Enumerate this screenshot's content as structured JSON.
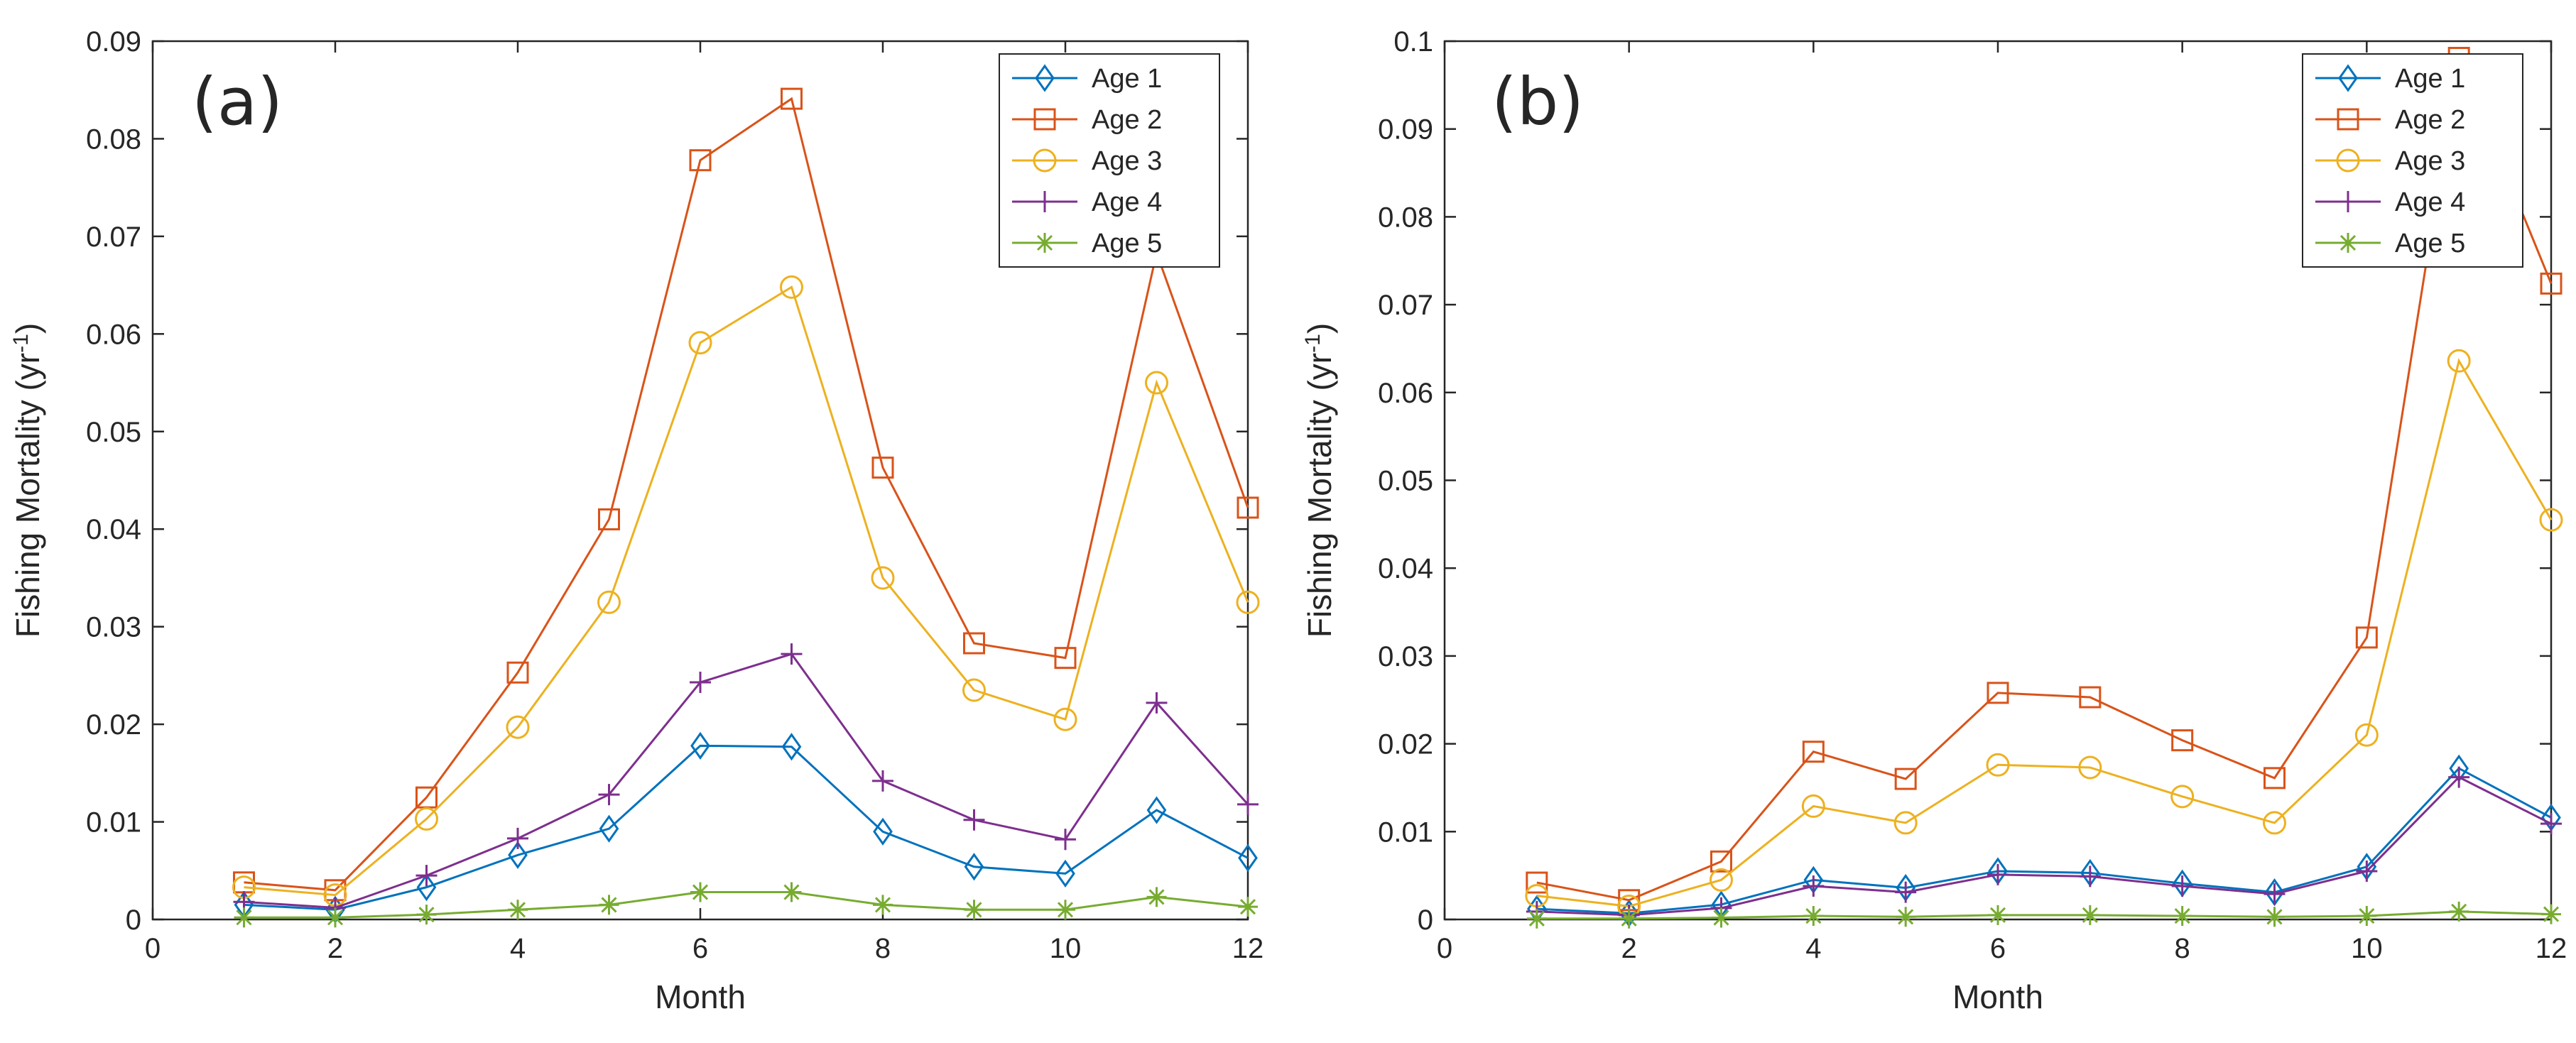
{
  "chart_data": [
    {
      "type": "line",
      "panel_label": "(a)",
      "xlabel": "Month",
      "ylabel": "Fishing Mortality (yr",
      "ylabel_sup": "-1",
      "ylabel_close": ")",
      "xlim": [
        0,
        12
      ],
      "ylim": [
        0,
        0.09
      ],
      "xticks": [
        0,
        2,
        4,
        6,
        8,
        10,
        12
      ],
      "xtick_labels": [
        "0",
        "2",
        "4",
        "6",
        "8",
        "10",
        "12"
      ],
      "yticks": [
        0,
        0.01,
        0.02,
        0.03,
        0.04,
        0.05,
        0.06,
        0.07,
        0.08,
        0.09
      ],
      "ytick_labels": [
        "0",
        "0.01",
        "0.02",
        "0.03",
        "0.04",
        "0.05",
        "0.06",
        "0.07",
        "0.08",
        "0.09"
      ],
      "grid": false,
      "legend_position": "top-right",
      "x": [
        1,
        2,
        3,
        4,
        5,
        6,
        7,
        8,
        9,
        10,
        11,
        12
      ],
      "series": [
        {
          "name": "Age 1",
          "marker": "diamond",
          "color": "#0072BD",
          "values": [
            0.0015,
            0.001,
            0.0033,
            0.0066,
            0.0093,
            0.0178,
            0.0177,
            0.009,
            0.0054,
            0.0047,
            0.0112,
            0.0063
          ]
        },
        {
          "name": "Age 2",
          "marker": "square",
          "color": "#D95319",
          "values": [
            0.0038,
            0.003,
            0.0125,
            0.0253,
            0.041,
            0.0778,
            0.0841,
            0.0463,
            0.0283,
            0.0268,
            0.0683,
            0.0422
          ]
        },
        {
          "name": "Age 3",
          "marker": "circle",
          "color": "#EDB120",
          "values": [
            0.0033,
            0.0025,
            0.0103,
            0.0197,
            0.0325,
            0.0591,
            0.0648,
            0.035,
            0.0235,
            0.0205,
            0.055,
            0.0325
          ]
        },
        {
          "name": "Age 4",
          "marker": "plus",
          "color": "#7E2F8E",
          "values": [
            0.0018,
            0.0012,
            0.0045,
            0.0083,
            0.0128,
            0.0243,
            0.0272,
            0.0142,
            0.0102,
            0.0082,
            0.0222,
            0.0118
          ]
        },
        {
          "name": "Age 5",
          "marker": "asterisk",
          "color": "#77AC30",
          "values": [
            0.0002,
            0.0002,
            0.0005,
            0.001,
            0.0015,
            0.0028,
            0.0028,
            0.0015,
            0.001,
            0.001,
            0.0023,
            0.0013
          ]
        }
      ]
    },
    {
      "type": "line",
      "panel_label": "(b)",
      "xlabel": "Month",
      "ylabel": "Fishing Mortality (yr",
      "ylabel_sup": "-1",
      "ylabel_close": ")",
      "xlim": [
        0,
        12
      ],
      "ylim": [
        0,
        0.1
      ],
      "xticks": [
        0,
        2,
        4,
        6,
        8,
        10,
        12
      ],
      "xtick_labels": [
        "0",
        "2",
        "4",
        "6",
        "8",
        "10",
        "12"
      ],
      "yticks": [
        0,
        0.01,
        0.02,
        0.03,
        0.04,
        0.05,
        0.06,
        0.07,
        0.08,
        0.09,
        0.1
      ],
      "ytick_labels": [
        "0",
        "0.01",
        "0.02",
        "0.03",
        "0.04",
        "0.05",
        "0.06",
        "0.07",
        "0.08",
        "0.09",
        "0.1"
      ],
      "grid": false,
      "legend_position": "top-right",
      "x": [
        1,
        2,
        3,
        4,
        5,
        6,
        7,
        8,
        9,
        10,
        11,
        12
      ],
      "series": [
        {
          "name": "Age 1",
          "marker": "diamond",
          "color": "#0072BD",
          "values": [
            0.0012,
            0.0007,
            0.0017,
            0.0045,
            0.0036,
            0.0055,
            0.0053,
            0.0041,
            0.0031,
            0.006,
            0.0172,
            0.0116
          ]
        },
        {
          "name": "Age 2",
          "marker": "square",
          "color": "#D95319",
          "values": [
            0.0042,
            0.0022,
            0.0066,
            0.0191,
            0.016,
            0.0258,
            0.0253,
            0.0204,
            0.0161,
            0.0321,
            0.0981,
            0.0724
          ]
        },
        {
          "name": "Age 3",
          "marker": "circle",
          "color": "#EDB120",
          "values": [
            0.0027,
            0.0015,
            0.0045,
            0.0129,
            0.011,
            0.0176,
            0.0173,
            0.014,
            0.011,
            0.021,
            0.0636,
            0.0455
          ]
        },
        {
          "name": "Age 4",
          "marker": "plus",
          "color": "#7E2F8E",
          "values": [
            0.0009,
            0.0005,
            0.0013,
            0.0038,
            0.0031,
            0.0051,
            0.0049,
            0.0038,
            0.0029,
            0.0055,
            0.0162,
            0.0109
          ]
        },
        {
          "name": "Age 5",
          "marker": "asterisk",
          "color": "#77AC30",
          "values": [
            0.0001,
            0.0001,
            0.0002,
            0.0004,
            0.0003,
            0.0005,
            0.0005,
            0.0004,
            0.0003,
            0.0004,
            0.0009,
            0.0006
          ]
        }
      ]
    }
  ]
}
